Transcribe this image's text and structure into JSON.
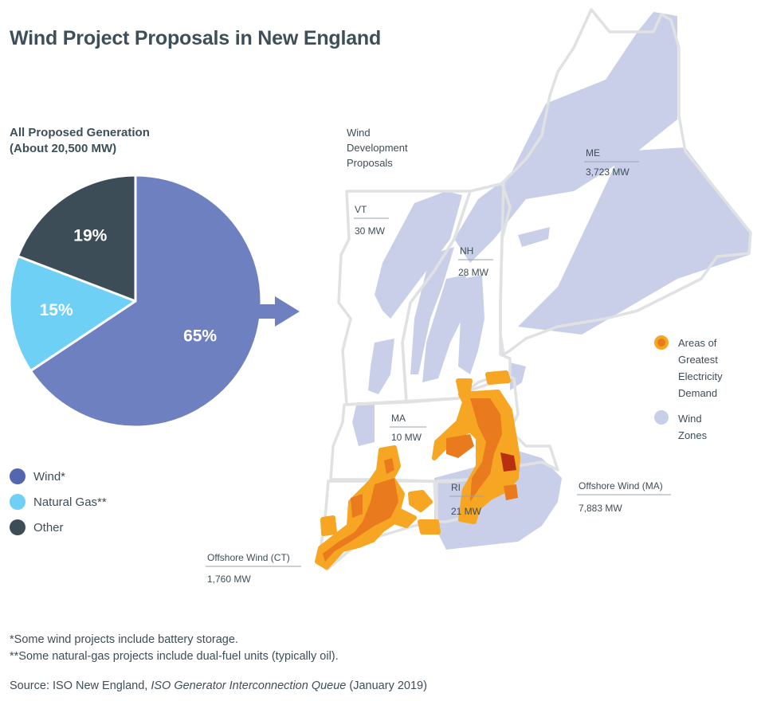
{
  "title": "Wind Project Proposals in New England",
  "pie": {
    "subtitle_line1": "All Proposed Generation",
    "subtitle_line2": "(About 20,500 MW)"
  },
  "chart_data": {
    "type": "pie",
    "title": "All Proposed Generation (About 20,500 MW)",
    "slices": [
      {
        "label": "Wind*",
        "value": 65,
        "display": "65%",
        "color": "#6f80c0"
      },
      {
        "label": "Natural Gas**",
        "value": 15,
        "display": "15%",
        "color": "#6dd0f4"
      },
      {
        "label": "Other",
        "value": 19,
        "display": "19%",
        "color": "#3d4d58"
      }
    ]
  },
  "legend": [
    {
      "label": "Wind*",
      "color": "#5566b0"
    },
    {
      "label": "Natural Gas**",
      "color": "#6dd0f4"
    },
    {
      "label": "Other",
      "color": "#3d4d58"
    }
  ],
  "map": {
    "heading_line1": "Wind",
    "heading_line2": "Development",
    "heading_line3": "Proposals",
    "states": {
      "vt": {
        "name": "VT",
        "mw": "30 MW"
      },
      "nh": {
        "name": "NH",
        "mw": "28 MW"
      },
      "me": {
        "name": "ME",
        "mw": "3,723 MW"
      },
      "ma": {
        "name": "MA",
        "mw": "10 MW"
      },
      "ri": {
        "name": "RI",
        "mw": "21 MW"
      }
    },
    "offshore_ma": {
      "name": "Offshore Wind (MA)",
      "mw": "7,883 MW"
    },
    "offshore_ct": {
      "name": "Offshore Wind (CT)",
      "mw": "1,760 MW"
    },
    "legend": {
      "demand_line1": "Areas of",
      "demand_line2": "Greatest",
      "demand_line3": "Electricity",
      "demand_line4": "Demand",
      "wind_line1": "Wind",
      "wind_line2": "Zones"
    }
  },
  "colors": {
    "wind_zone": "#c9cfe8",
    "state_outline": "#e2e3e5",
    "demand_outer": "#f6a623",
    "demand_mid": "#ea7a1e",
    "demand_inner": "#b8300f",
    "arrow": "#6f80c0"
  },
  "footnotes": {
    "note1": "*Some wind projects include battery storage.",
    "note2": "**Some natural-gas projects include dual-fuel units (typically oil).",
    "source_prefix": "Source: ISO New England, ",
    "source_italic": "ISO Generator Interconnection Queue",
    "source_suffix": " (January 2019)"
  }
}
